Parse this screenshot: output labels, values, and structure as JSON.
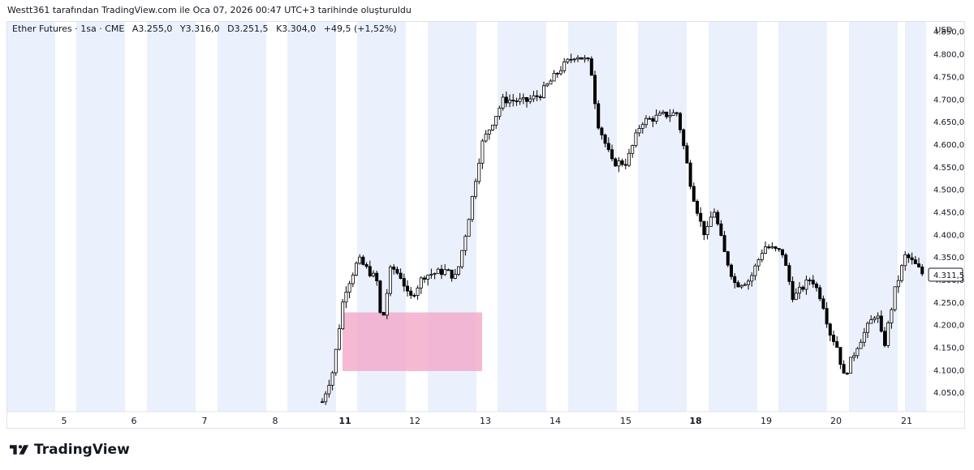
{
  "header": {
    "caption": "Westt361 tarafından TradingView.com ile Oca 07, 2026 00:47 UTC+3 tarihinde oluşturuldu"
  },
  "legend": {
    "symbol": "Ether Futures · 1sa · CME",
    "open": "A3.255,0",
    "high": "Y3.316,0",
    "low": "D3.251,5",
    "close": "K3.304,0",
    "change": "+49,5 (+1,52%)"
  },
  "brand": {
    "name": "TradingView"
  },
  "colors": {
    "session_band": "#ebf0fd",
    "zone": "#f2a7c9",
    "candle_body_up": "#ffffff",
    "candle_body_down": "#000000",
    "candle_wick": "#000000",
    "axis_text": "#131722"
  },
  "chart_data": {
    "type": "candlestick",
    "currency": "USD",
    "current_price_label": "4.311,5",
    "y_ticks": [
      "4.850,0",
      "4.800,0",
      "4.750,0",
      "4.700,0",
      "4.650,0",
      "4.600,0",
      "4.550,0",
      "4.500,0",
      "4.450,0",
      "4.400,0",
      "4.350,0",
      "4.300,0",
      "4.250,0",
      "4.200,0",
      "4.150,0",
      "4.100,0",
      "4.050,0"
    ],
    "y_tick_values": [
      4850,
      4800,
      4750,
      4700,
      4650,
      4600,
      4550,
      4500,
      4450,
      4400,
      4350,
      4300,
      4250,
      4200,
      4150,
      4100,
      4050
    ],
    "ylim": [
      4008,
      4872
    ],
    "x_ticks": [
      "5",
      "6",
      "7",
      "8",
      "11",
      "12",
      "13",
      "14",
      "15",
      "18",
      "19",
      "20",
      "21"
    ],
    "x_tick_bold": [
      "11",
      "18"
    ],
    "grid": false,
    "zone": {
      "price_top": 4228,
      "price_bottom": 4098,
      "from_day": "11",
      "to_day": "13"
    },
    "price_path": [
      [
        10.8,
        4030
      ],
      [
        10.95,
        4100
      ],
      [
        11.1,
        4270
      ],
      [
        11.3,
        4345
      ],
      [
        11.55,
        4300
      ],
      [
        11.62,
        4195
      ],
      [
        11.75,
        4330
      ],
      [
        11.9,
        4305
      ],
      [
        12.0,
        4255
      ],
      [
        12.2,
        4310
      ],
      [
        12.5,
        4320
      ],
      [
        12.65,
        4305
      ],
      [
        12.8,
        4420
      ],
      [
        13.0,
        4600
      ],
      [
        13.3,
        4700
      ],
      [
        13.6,
        4695
      ],
      [
        13.8,
        4710
      ],
      [
        14.1,
        4770
      ],
      [
        14.3,
        4800
      ],
      [
        14.5,
        4780
      ],
      [
        14.6,
        4650
      ],
      [
        14.8,
        4560
      ],
      [
        15.0,
        4560
      ],
      [
        15.2,
        4650
      ],
      [
        15.5,
        4665
      ],
      [
        15.7,
        4670
      ],
      [
        15.9,
        4500
      ],
      [
        16.05,
        4410
      ],
      [
        16.1,
        4400
      ],
      [
        16.2,
        4460
      ],
      [
        16.35,
        4360
      ],
      [
        16.5,
        4290
      ],
      [
        16.7,
        4300
      ],
      [
        16.9,
        4375
      ],
      [
        17.15,
        4360
      ],
      [
        17.3,
        4260
      ],
      [
        17.55,
        4305
      ],
      [
        17.7,
        4255
      ],
      [
        17.8,
        4185
      ],
      [
        17.9,
        4155
      ],
      [
        18.0,
        4085
      ],
      [
        18.2,
        4160
      ],
      [
        18.45,
        4230
      ],
      [
        18.55,
        4150
      ],
      [
        18.7,
        4275
      ],
      [
        18.85,
        4355
      ],
      [
        19.0,
        4330
      ],
      [
        19.1,
        4310
      ]
    ]
  }
}
